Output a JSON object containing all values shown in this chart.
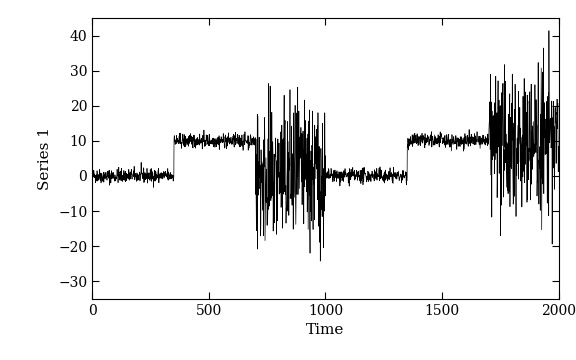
{
  "n": 2000,
  "segments": [
    {
      "start": 0,
      "end": 350,
      "mean": 0,
      "sd": 1
    },
    {
      "start": 350,
      "end": 700,
      "mean": 10,
      "sd": 1
    },
    {
      "start": 700,
      "end": 1000,
      "mean": 0,
      "sd": 10
    },
    {
      "start": 1000,
      "end": 1350,
      "mean": 0,
      "sd": 1
    },
    {
      "start": 1350,
      "end": 1700,
      "mean": 10,
      "sd": 1
    },
    {
      "start": 1700,
      "end": 2000,
      "mean": 10,
      "sd": 10
    }
  ],
  "seed": 42,
  "xlabel": "Time",
  "ylabel": "Series 1",
  "xlim": [
    0,
    2000
  ],
  "ylim": [
    -35,
    45
  ],
  "yticks": [
    -30,
    -20,
    -10,
    0,
    10,
    20,
    30,
    40
  ],
  "xticks": [
    0,
    500,
    1000,
    1500,
    2000
  ],
  "line_color": "#000000",
  "line_width": 0.5,
  "bg_color": "#ffffff",
  "panel_bg": "#ffffff",
  "axis_fontsize": 11,
  "tick_fontsize": 10
}
